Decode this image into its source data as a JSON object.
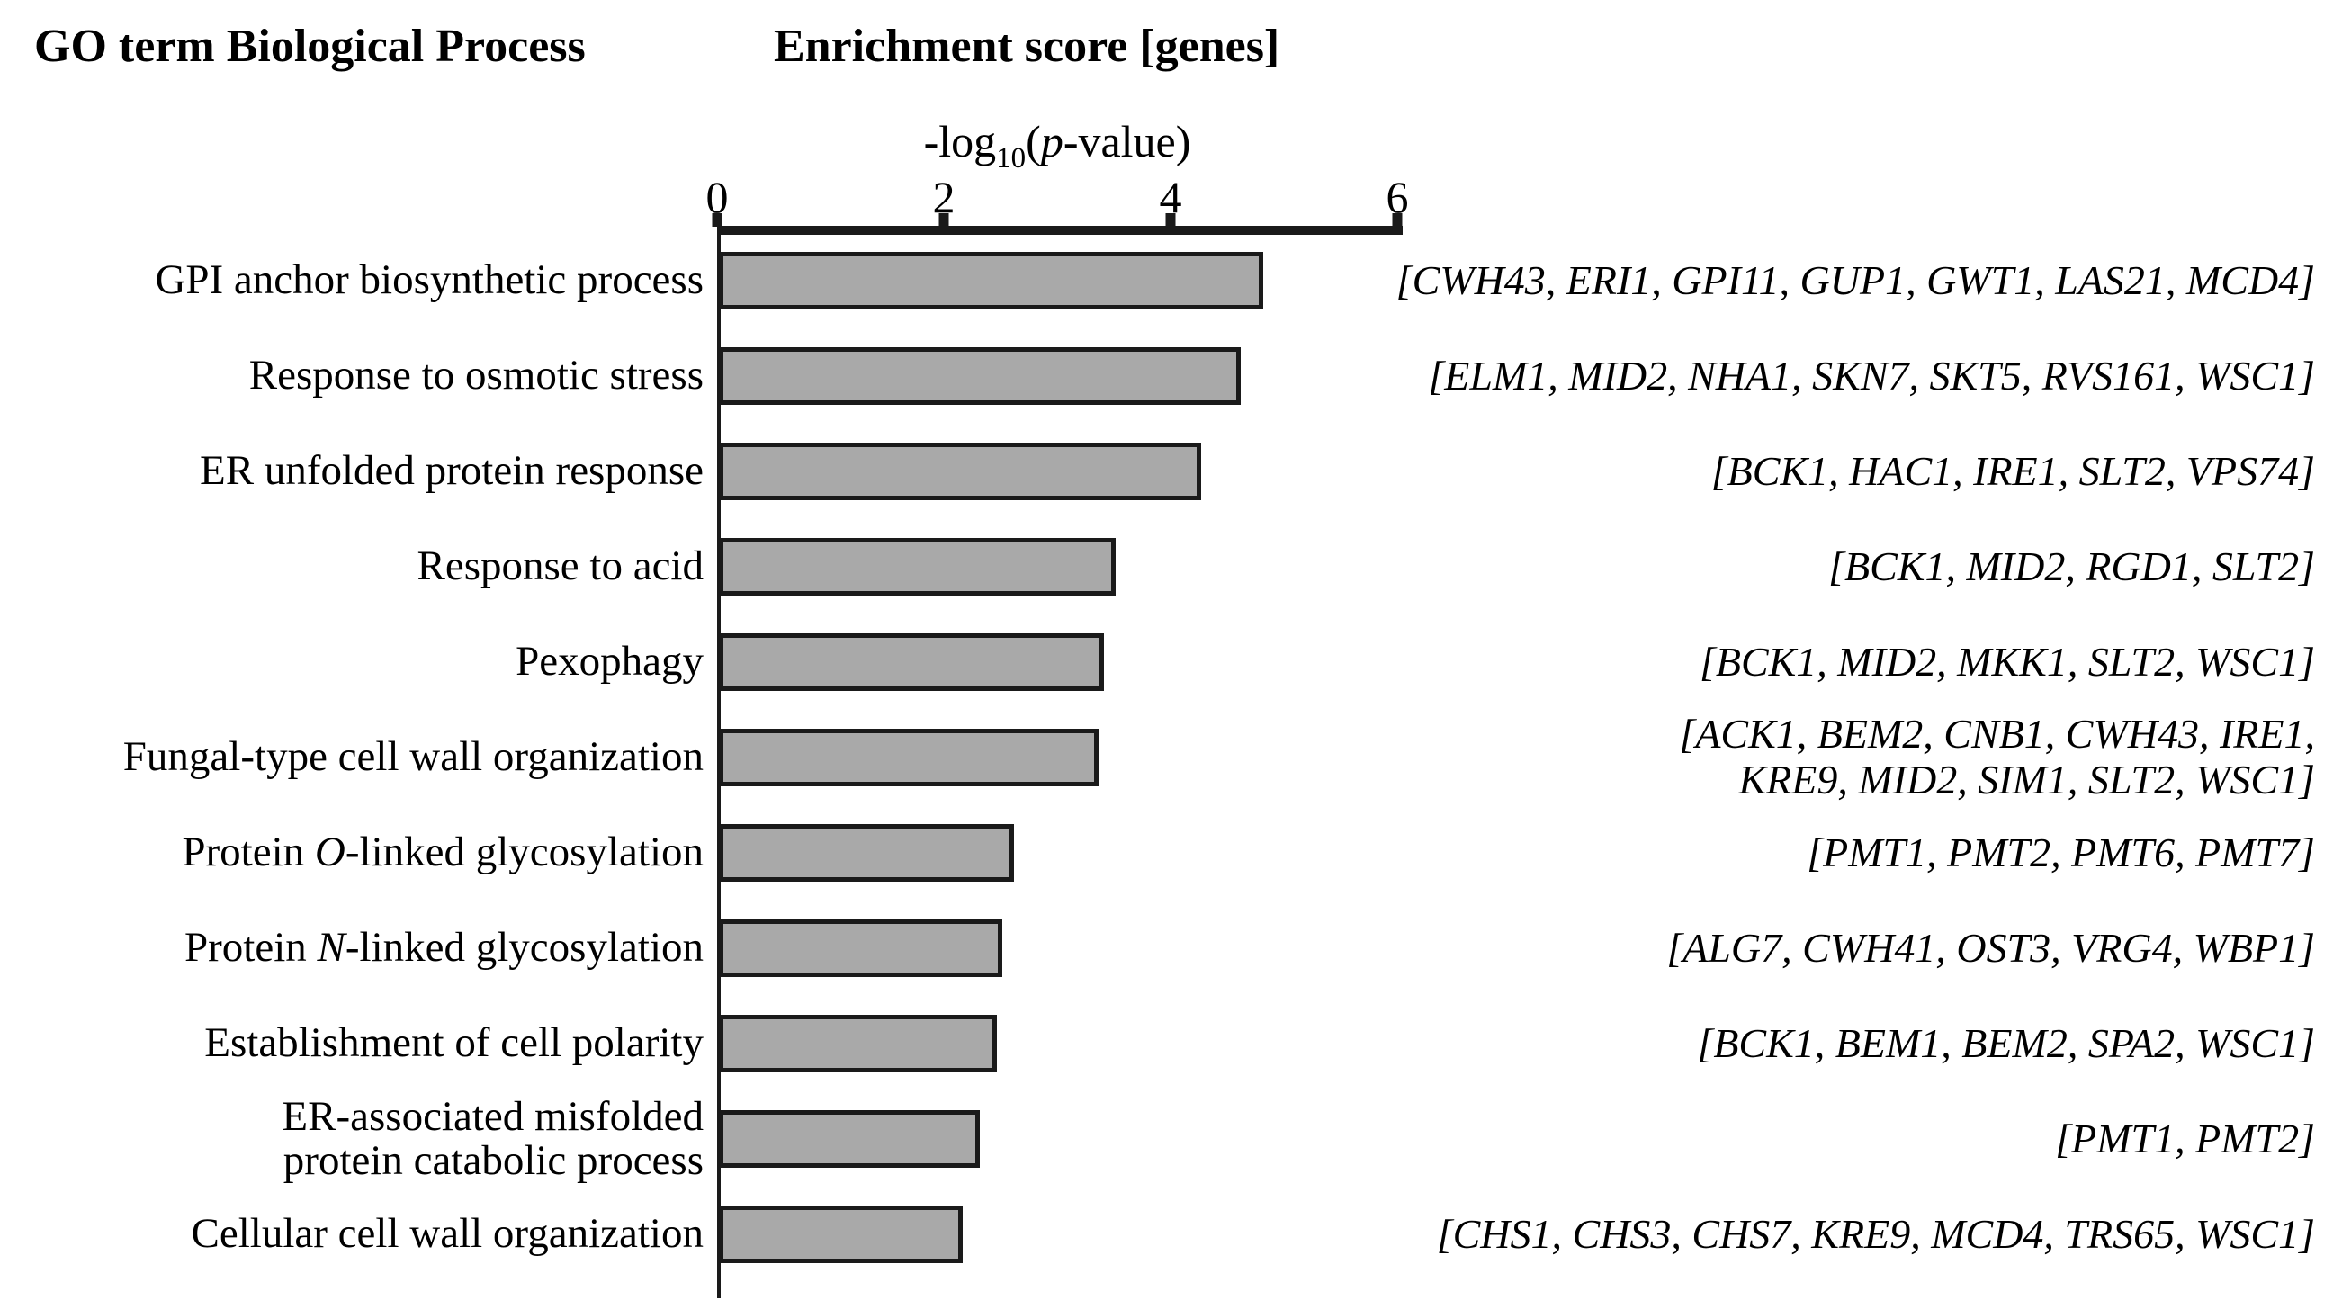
{
  "header": {
    "left_title": "GO term Biological Process",
    "right_title": "Enrichment score [genes]"
  },
  "axis": {
    "label": {
      "prefix": "-log",
      "sub": "10",
      "open": "(",
      "p": "p",
      "suffix": "-value)"
    },
    "ticks": [
      0,
      2,
      4,
      6
    ],
    "max": 6
  },
  "colors": {
    "bar_fill": "#a9a9a9",
    "bar_border": "#1a1a1a",
    "axis": "#1a1a1a",
    "text": "#000000"
  },
  "chart_data": {
    "type": "bar",
    "orientation": "horizontal",
    "xlabel": "-log10(p-value)",
    "xlim": [
      0,
      6
    ],
    "grid": false,
    "categories": [
      "GPI anchor biosynthetic process",
      "Response to osmotic stress",
      "ER unfolded protein response",
      "Response to acid",
      "Pexophagy",
      "Fungal-type cell wall organization",
      "Protein O-linked glycosylation",
      "Protein N-linked glycosylation",
      "Establishment of cell polarity",
      "ER-associated misfolded protein catabolic process",
      "Cellular cell wall organization"
    ],
    "values": [
      4.8,
      4.6,
      4.25,
      3.5,
      3.4,
      3.35,
      2.6,
      2.5,
      2.45,
      2.3,
      2.15
    ],
    "rows": [
      {
        "label_lines": [
          [
            {
              "t": "GPI anchor biosynthetic process",
              "i": false
            }
          ]
        ],
        "value": 4.8,
        "genes": [
          "CWH43",
          "ERI1",
          "GPI11",
          "GUP1",
          "GWT1",
          "LAS21",
          "MCD4"
        ],
        "gene_lines": [
          "[CWH43, ERI1, GPI11, GUP1, GWT1, LAS21, MCD4]"
        ]
      },
      {
        "label_lines": [
          [
            {
              "t": "Response to osmotic stress",
              "i": false
            }
          ]
        ],
        "value": 4.6,
        "genes": [
          "ELM1",
          "MID2",
          "NHA1",
          "SKN7",
          "SKT5",
          "RVS161",
          "WSC1"
        ],
        "gene_lines": [
          "[ELM1, MID2, NHA1, SKN7, SKT5, RVS161, WSC1]"
        ]
      },
      {
        "label_lines": [
          [
            {
              "t": "ER unfolded protein response",
              "i": false
            }
          ]
        ],
        "value": 4.25,
        "genes": [
          "BCK1",
          "HAC1",
          "IRE1",
          "SLT2",
          "VPS74"
        ],
        "gene_lines": [
          "[BCK1, HAC1, IRE1, SLT2, VPS74]"
        ]
      },
      {
        "label_lines": [
          [
            {
              "t": "Response to acid",
              "i": false
            }
          ]
        ],
        "value": 3.5,
        "genes": [
          "BCK1",
          "MID2",
          "RGD1",
          "SLT2"
        ],
        "gene_lines": [
          "[BCK1, MID2, RGD1, SLT2]"
        ]
      },
      {
        "label_lines": [
          [
            {
              "t": "Pexophagy",
              "i": false
            }
          ]
        ],
        "value": 3.4,
        "genes": [
          "BCK1",
          "MID2",
          "MKK1",
          "SLT2",
          "WSC1"
        ],
        "gene_lines": [
          "[BCK1, MID2, MKK1, SLT2, WSC1]"
        ]
      },
      {
        "label_lines": [
          [
            {
              "t": "Fungal-type cell wall organization",
              "i": false
            }
          ]
        ],
        "value": 3.35,
        "genes": [
          "ACK1",
          "BEM2",
          "CNB1",
          "CWH43",
          "IRE1",
          "KRE9",
          "MID2",
          "SIM1",
          "SLT2",
          "WSC1"
        ],
        "gene_lines": [
          "[ACK1, BEM2, CNB1, CWH43, IRE1,",
          "KRE9, MID2, SIM1, SLT2, WSC1]"
        ]
      },
      {
        "label_lines": [
          [
            {
              "t": "Protein ",
              "i": false
            },
            {
              "t": "O",
              "i": true
            },
            {
              "t": "-linked glycosylation",
              "i": false
            }
          ]
        ],
        "value": 2.6,
        "genes": [
          "PMT1",
          "PMT2",
          "PMT6",
          "PMT7"
        ],
        "gene_lines": [
          "[PMT1, PMT2, PMT6, PMT7]"
        ]
      },
      {
        "label_lines": [
          [
            {
              "t": "Protein ",
              "i": false
            },
            {
              "t": "N",
              "i": true
            },
            {
              "t": "-linked glycosylation",
              "i": false
            }
          ]
        ],
        "value": 2.5,
        "genes": [
          "ALG7",
          "CWH41",
          "OST3",
          "VRG4",
          "WBP1"
        ],
        "gene_lines": [
          "[ALG7, CWH41, OST3, VRG4, WBP1]"
        ]
      },
      {
        "label_lines": [
          [
            {
              "t": "Establishment of cell polarity",
              "i": false
            }
          ]
        ],
        "value": 2.45,
        "genes": [
          "BCK1",
          "BEM1",
          "BEM2",
          "SPA2",
          "WSC1"
        ],
        "gene_lines": [
          "[BCK1, BEM1, BEM2, SPA2, WSC1]"
        ]
      },
      {
        "label_lines": [
          [
            {
              "t": "ER-associated misfolded",
              "i": false
            }
          ],
          [
            {
              "t": "protein catabolic process",
              "i": false
            }
          ]
        ],
        "value": 2.3,
        "genes": [
          "PMT1",
          "PMT2"
        ],
        "gene_lines": [
          "[PMT1, PMT2]"
        ]
      },
      {
        "label_lines": [
          [
            {
              "t": "Cellular cell wall organization",
              "i": false
            }
          ]
        ],
        "value": 2.15,
        "genes": [
          "CHS1",
          "CHS3",
          "CHS7",
          "KRE9",
          "MCD4",
          "TRS65",
          "WSC1"
        ],
        "gene_lines": [
          "[CHS1, CHS3, CHS7, KRE9, MCD4, TRS65, WSC1]"
        ]
      }
    ]
  }
}
